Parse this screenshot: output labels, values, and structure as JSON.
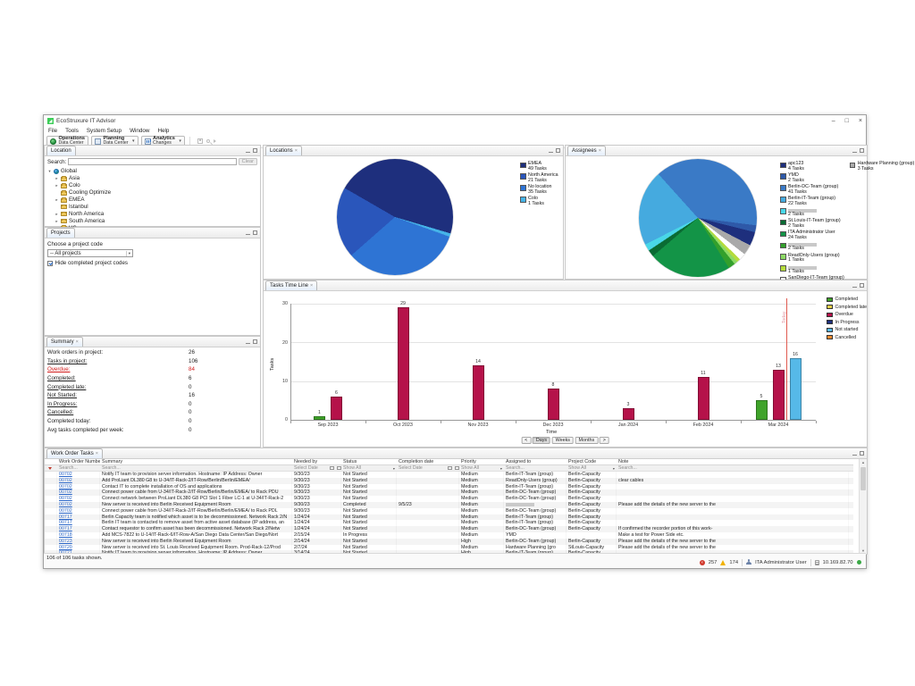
{
  "window": {
    "title": "EcoStruxure IT Advisor",
    "minimize": "–",
    "maximize": "□",
    "close": "×"
  },
  "menu": [
    "File",
    "Tools",
    "System Setup",
    "Window",
    "Help"
  ],
  "toolbar": {
    "operations": {
      "title": "Operations",
      "subtitle": "Data Center"
    },
    "planning": {
      "title": "Planning",
      "subtitle": "Data Center"
    },
    "analytics": {
      "title": "Analytics",
      "subtitle": "Changes"
    }
  },
  "location_panel": {
    "tab": "Location",
    "search_label": "Search:",
    "clear_button": "Clear",
    "tree": [
      {
        "label": "Global",
        "icon": "globe",
        "chevron": "expanded",
        "level": 0
      },
      {
        "label": "Asia",
        "icon": "folder",
        "chevron": "collapsed",
        "level": 1
      },
      {
        "label": "Colo",
        "icon": "folder",
        "chevron": "collapsed",
        "level": 1
      },
      {
        "label": "Cooling Optimize",
        "icon": "folder",
        "chevron": "none",
        "level": 1
      },
      {
        "label": "EMEA",
        "icon": "folder",
        "chevron": "collapsed",
        "level": 1
      },
      {
        "label": "Istanbul",
        "icon": "folder",
        "chevron": "none",
        "level": 1
      },
      {
        "label": "North America",
        "icon": "folder",
        "chevron": "collapsed",
        "level": 1
      },
      {
        "label": "South America",
        "icon": "folder",
        "chevron": "collapsed",
        "level": 1
      },
      {
        "label": "US",
        "icon": "folder",
        "chevron": "none",
        "level": 1
      }
    ]
  },
  "projects_panel": {
    "tab": "Projects",
    "choose_label": "Choose a project code",
    "project_select": "-- All projects",
    "hide_completed_label": "Hide completed project codes",
    "hide_completed_checked": true
  },
  "summary_panel": {
    "tab": "Summary",
    "rows": [
      {
        "label": "Work orders in project:",
        "value": "26",
        "link": false,
        "alert": false
      },
      {
        "label": "Tasks in project:",
        "value": "106",
        "link": true,
        "alert": false
      },
      {
        "label": "Overdue:",
        "value": "84",
        "link": true,
        "alert": true
      },
      {
        "label": "Completed:",
        "value": "6",
        "link": true,
        "alert": false
      },
      {
        "label": "Completed late:",
        "value": "0",
        "link": true,
        "alert": false
      },
      {
        "label": "Not Started:",
        "value": "16",
        "link": true,
        "alert": false
      },
      {
        "label": "In Progress:",
        "value": "0",
        "link": true,
        "alert": false
      },
      {
        "label": "Cancelled:",
        "value": "0",
        "link": true,
        "alert": false
      },
      {
        "label": "Completed today:",
        "value": "0",
        "link": false,
        "alert": false
      },
      {
        "label": "Avg tasks completed per week:",
        "value": "0",
        "link": false,
        "alert": false
      }
    ]
  },
  "chart_data": [
    {
      "type": "pie",
      "panel_tab": "Locations",
      "unit": "Tasks",
      "slices": [
        {
          "label": "EMEA",
          "value": 49,
          "color": "#1e2f7d",
          "redacted": false
        },
        {
          "label": "North America",
          "value": 21,
          "color": "#2a56bb",
          "redacted": false
        },
        {
          "label": "No location",
          "value": 35,
          "color": "#2e74d4",
          "redacted": false
        },
        {
          "label": "Colo",
          "value": 1,
          "color": "#45b3e8",
          "redacted": false
        }
      ],
      "draw_order": [
        0,
        3,
        2,
        1
      ],
      "start_angle": 300,
      "legend_position": "right"
    },
    {
      "type": "pie",
      "panel_tab": "Assignees",
      "unit": "Tasks",
      "slices": [
        {
          "label": "apc123",
          "value": 4,
          "color": "#1e2f7d",
          "redacted": false
        },
        {
          "label": "YMD",
          "value": 2,
          "color": "#2e59a8",
          "redacted": false
        },
        {
          "label": "Berlin-DC-Team (group)",
          "value": 41,
          "color": "#3a7ac6",
          "redacted": false
        },
        {
          "label": "Berlin-IT-Team (group)",
          "value": 22,
          "color": "#45aadf",
          "redacted": false
        },
        {
          "label": "",
          "value": 2,
          "color": "#49d7e8",
          "redacted": true
        },
        {
          "label": "St.Louis-IT-Team (group)",
          "value": 2,
          "color": "#0a6b33",
          "redacted": false
        },
        {
          "label": "ITA Administrator User",
          "value": 24,
          "color": "#139447",
          "redacted": false
        },
        {
          "label": "",
          "value": 2,
          "color": "#33a02c",
          "redacted": true
        },
        {
          "label": "ReadOnly-Users (group)",
          "value": 1,
          "color": "#8cd964",
          "redacted": false
        },
        {
          "label": "",
          "value": 1,
          "color": "#b5dc3c",
          "redacted": true
        },
        {
          "label": "SanDiego-IT-Team (group)",
          "value": 2,
          "color": "#ffffff",
          "redacted": false
        },
        {
          "label": "Hardware Planning (group)",
          "value": 3,
          "color": "#a9a9a9",
          "redacted": false,
          "legend_col": 1
        }
      ],
      "draw_order": [
        2,
        1,
        0,
        11,
        10,
        9,
        8,
        7,
        6,
        5,
        4,
        3
      ],
      "start_angle": 318,
      "legend_position": "right"
    },
    {
      "type": "bar",
      "panel_tab": "Tasks Time Line",
      "xlabel": "Time",
      "ylabel": "Tasks",
      "ylim": [
        0,
        30
      ],
      "yticks": [
        0,
        10,
        20,
        30
      ],
      "grid": true,
      "legend_position": "right",
      "categories": [
        "Sep 2023",
        "Oct 2023",
        "Nov 2023",
        "Dec 2023",
        "Jan 2024",
        "Feb 2024",
        "Mar 2024"
      ],
      "series": [
        {
          "name": "Completed",
          "color": "#3fa32a",
          "values": [
            1,
            0,
            0,
            0,
            0,
            0,
            5
          ]
        },
        {
          "name": "Completed late",
          "color": "#e3cf4a",
          "values": [
            0,
            0,
            0,
            0,
            0,
            0,
            0
          ]
        },
        {
          "name": "Overdue",
          "color": "#b5124a",
          "values": [
            6,
            29,
            14,
            8,
            3,
            11,
            13
          ]
        },
        {
          "name": "In Progress",
          "color": "#1e2f7d",
          "values": [
            0,
            0,
            0,
            0,
            0,
            0,
            0
          ]
        },
        {
          "name": "Not started",
          "color": "#56b9e8",
          "values": [
            0,
            0,
            0,
            0,
            0,
            0,
            16
          ]
        },
        {
          "name": "Cancelled",
          "color": "#ef8b2f",
          "values": [
            0,
            0,
            0,
            0,
            0,
            0,
            0
          ]
        }
      ],
      "today": {
        "label": "Today",
        "frac": 0.944
      },
      "controls": {
        "prev": "<",
        "modes": [
          "Days",
          "Weeks",
          "Months"
        ],
        "active_mode": "Days",
        "next": ">"
      }
    }
  ],
  "table": {
    "tab": "Work Order Tasks",
    "columns": [
      "Work Order Number",
      "Summary",
      "Needed by",
      "Status",
      "Completion date",
      "Priority",
      "Assigned to",
      "Project Code",
      "Note"
    ],
    "filters": {
      "work_order": "Search...",
      "summary": "Search...",
      "needed_by": "Select Date",
      "status": "Show All",
      "completion_date": "Select Date",
      "priority": "Show All",
      "assigned_to": "Search...",
      "project_code": "Show All",
      "note": "Search..."
    },
    "rows": [
      {
        "wo": "00702",
        "summary": "Notify IT team to provision server information. Hostname: IP Address: Owner",
        "needed_by": "9/30/23",
        "status": "Not Started",
        "completion_date": "",
        "priority": "Medium",
        "assigned_to": "Berlin-IT-Team (group)",
        "assigned_redacted": false,
        "project_code": "Berlin-Capacity",
        "note": ""
      },
      {
        "wo": "00702",
        "summary": "Add ProLiant DL380 G8 to U-34/IT-Rack-2/IT-Row/Berlin/Berlin/EMEA/",
        "needed_by": "9/30/23",
        "status": "Not Started",
        "completion_date": "",
        "priority": "Medium",
        "assigned_to": "ReadOnly-Users (group)",
        "assigned_redacted": false,
        "project_code": "Berlin-Capacity",
        "note": "clear cables"
      },
      {
        "wo": "00702",
        "summary": "Contact IT to complete installation of OS and applications",
        "needed_by": "9/30/23",
        "status": "Not Started",
        "completion_date": "",
        "priority": "Medium",
        "assigned_to": "Berlin-IT-Team (group)",
        "assigned_redacted": false,
        "project_code": "Berlin-Capacity",
        "note": ""
      },
      {
        "wo": "00702",
        "summary": "Connect power cable from U-34/IT-Rack-2/IT-Row/Berlin/Berlin/EMEA/ to Rack PDU",
        "needed_by": "9/30/23",
        "status": "Not Started",
        "completion_date": "",
        "priority": "Medium",
        "assigned_to": "Berlin-DC-Team (group)",
        "assigned_redacted": false,
        "project_code": "Berlin-Capacity",
        "note": ""
      },
      {
        "wo": "00702",
        "summary": "Connect network between ProLiant DL380 G8 PCI Slot 1 Fiber LC-1 at U-34/IT-Rack-2",
        "needed_by": "9/30/23",
        "status": "Not Started",
        "completion_date": "",
        "priority": "Medium",
        "assigned_to": "Berlin-DC-Team (group)",
        "assigned_redacted": false,
        "project_code": "Berlin-Capacity",
        "note": ""
      },
      {
        "wo": "00702",
        "summary": "New server is received into Berlin Received Equipment Room",
        "needed_by": "9/30/23",
        "status": "Completed",
        "completion_date": "9/5/23",
        "priority": "Medium",
        "assigned_to": "",
        "assigned_redacted": true,
        "project_code": "Berlin-Capacity",
        "note": "Please add the details of the new server to the"
      },
      {
        "wo": "00702",
        "summary": "Connect power cable from U-34/IT-Rack-2/IT-Row/Berlin/Berlin/EMEA/ to Rack PDL",
        "needed_by": "9/30/23",
        "status": "Not Started",
        "completion_date": "",
        "priority": "Medium",
        "assigned_to": "Berlin-DC-Team (group)",
        "assigned_redacted": false,
        "project_code": "Berlin-Capacity",
        "note": ""
      },
      {
        "wo": "00717",
        "summary": "Berlin Capacity team is notified which asset is to be decommissioned. Network Rack 2/N",
        "needed_by": "1/24/24",
        "status": "Not Started",
        "completion_date": "",
        "priority": "Medium",
        "assigned_to": "Berlin-IT-Team (group)",
        "assigned_redacted": false,
        "project_code": "Berlin-Capacity",
        "note": ""
      },
      {
        "wo": "00717",
        "summary": "Berlin IT team is contacted to remove asset from active asset database (IP address, an",
        "needed_by": "1/24/24",
        "status": "Not Started",
        "completion_date": "",
        "priority": "Medium",
        "assigned_to": "Berlin-IT-Team (group)",
        "assigned_redacted": false,
        "project_code": "Berlin-Capacity",
        "note": ""
      },
      {
        "wo": "00717",
        "summary": "Contact requestor to confirm asset has been decommissioned. Network Rack 2/Netw",
        "needed_by": "1/24/24",
        "status": "Not Started",
        "completion_date": "",
        "priority": "Medium",
        "assigned_to": "Berlin-DC-Team (group)",
        "assigned_redacted": false,
        "project_code": "Berlin-Capacity",
        "note": "If confirmed the recorder portion of this work-"
      },
      {
        "wo": "00718",
        "summary": "Add MCS-7822 to U-14/IT-Rack-6/IT-Row-A/San Diego Data Center/San Diego/Nort",
        "needed_by": "2/15/24",
        "status": "In Progress",
        "completion_date": "",
        "priority": "Medium",
        "assigned_to": "YMD",
        "assigned_redacted": false,
        "project_code": "",
        "note": "Make a test for Power Side etc."
      },
      {
        "wo": "00723",
        "summary": "New server is received into Berlin Received Equipment Room",
        "needed_by": "2/14/24",
        "status": "Not Started",
        "completion_date": "",
        "priority": "High",
        "assigned_to": "Berlin-DC-Team (group)",
        "assigned_redacted": false,
        "project_code": "Berlin-Capacity",
        "note": "Please add the details of the new server to the"
      },
      {
        "wo": "00720",
        "summary": "New server is received into St. Louis Received Equipment Room. Prod-Rack-12/Prod",
        "needed_by": "2/7/24",
        "status": "Not Started",
        "completion_date": "",
        "priority": "Medium",
        "assigned_to": "Hardware Planning (gro",
        "assigned_redacted": false,
        "project_code": "StLouis-Capacity",
        "note": "Please add the details of the new server to the"
      },
      {
        "wo": "00721",
        "summary": "Notify IT team to provision server information. Hostname: IP Address: Owner",
        "needed_by": "3/14/24",
        "status": "Not Started",
        "completion_date": "",
        "priority": "High",
        "assigned_to": "Berlin-IT-Team (group)",
        "assigned_redacted": false,
        "project_code": "Berlin-Capacity",
        "note": ""
      }
    ]
  },
  "status_bar": {
    "tasks_shown": "106 of 106 tasks shown.",
    "error_count": "257",
    "warning_count": "174",
    "user": "ITA Administrator User",
    "server_ip": "10.169.82.70"
  }
}
